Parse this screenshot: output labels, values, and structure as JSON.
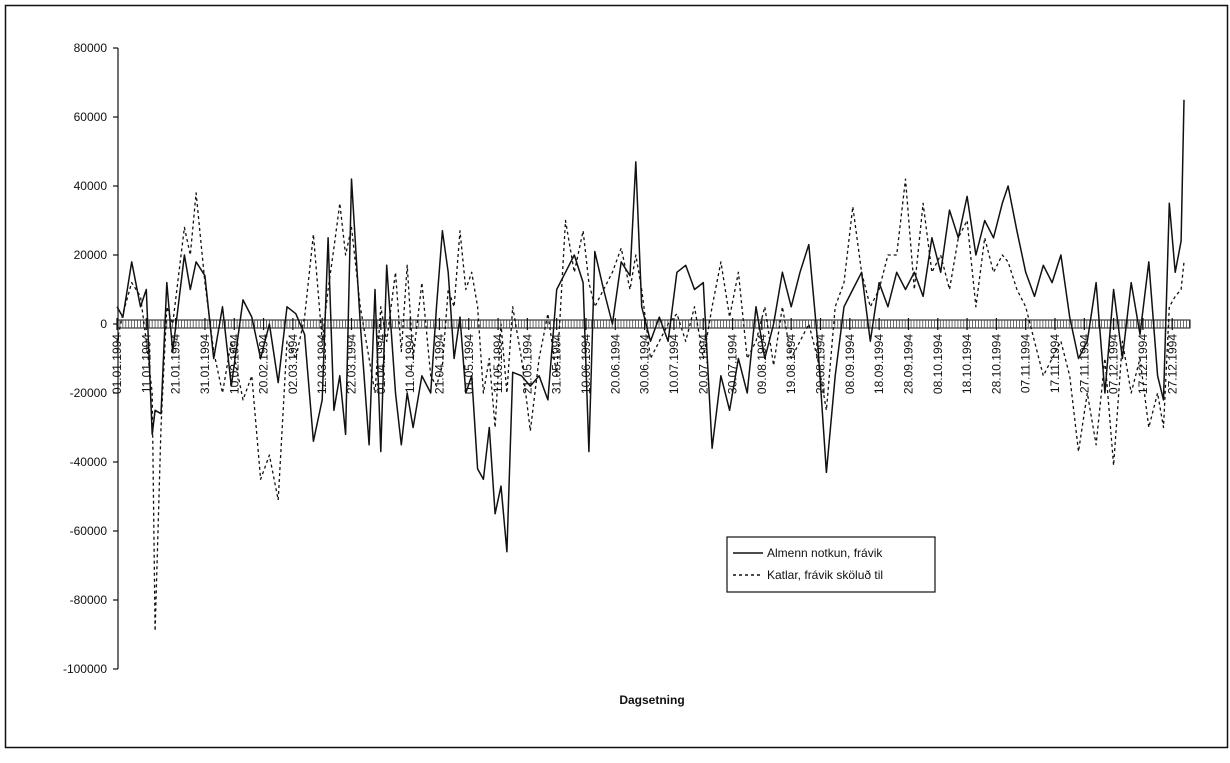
{
  "chart_data": {
    "type": "line",
    "x_label": "Dagsetning",
    "x": [
      "01.01.1994",
      "03.01.1994",
      "06.01.1994",
      "09.01.1994",
      "11.01.1994",
      "13.01.1994",
      "14.01.1994",
      "16.01.1994",
      "18.01.1994",
      "20.01.1994",
      "24.01.1994",
      "26.01.1994",
      "28.01.1994",
      "31.01.1994",
      "03.02.1994",
      "06.02.1994",
      "09.02.1994",
      "13.02.1994",
      "16.02.1994",
      "19.02.1994",
      "22.02.1994",
      "25.02.1994",
      "28.02.1994",
      "03.03.1994",
      "06.03.1994",
      "09.03.1994",
      "12.03.1994",
      "14.03.1994",
      "16.03.1994",
      "18.03.1994",
      "20.03.1994",
      "22.03.1994",
      "25.03.1994",
      "28.03.1994",
      "30.03.1994",
      "01.04.1994",
      "03.04.1994",
      "06.04.1994",
      "08.04.1994",
      "10.04.1994",
      "12.04.1994",
      "15.04.1994",
      "18.04.1994",
      "20.04.1994",
      "22.04.1994",
      "24.04.1994",
      "26.04.1994",
      "28.04.1994",
      "30.04.1994",
      "02.05.1994",
      "04.05.1994",
      "06.05.1994",
      "08.05.1994",
      "10.05.1994",
      "12.05.1994",
      "14.05.1994",
      "16.05.1994",
      "19.05.1994",
      "22.05.1994",
      "25.05.1994",
      "28.05.1994",
      "31.05.1994",
      "03.06.1994",
      "06.06.1994",
      "09.06.1994",
      "11.06.1994",
      "13.06.1994",
      "16.06.1994",
      "19.06.1994",
      "22.06.1994",
      "25.06.1994",
      "27.06.1994",
      "29.06.1994",
      "02.07.1994",
      "05.07.1994",
      "08.07.1994",
      "11.07.1994",
      "14.07.1994",
      "17.07.1994",
      "20.07.1994",
      "23.07.1994",
      "26.07.1994",
      "29.07.1994",
      "01.08.1994",
      "04.08.1994",
      "07.08.1994",
      "10.08.1994",
      "13.08.1994",
      "16.08.1994",
      "19.08.1994",
      "22.08.1994",
      "25.08.1994",
      "28.08.1994",
      "31.08.1994",
      "03.09.1994",
      "06.09.1994",
      "09.09.1994",
      "12.09.1994",
      "15.09.1994",
      "18.09.1994",
      "21.09.1994",
      "24.09.1994",
      "27.09.1994",
      "30.09.1994",
      "03.10.1994",
      "06.10.1994",
      "09.10.1994",
      "12.10.1994",
      "15.10.1994",
      "18.10.1994",
      "21.10.1994",
      "24.10.1994",
      "27.10.1994",
      "30.10.1994",
      "01.11.1994",
      "04.11.1994",
      "07.11.1994",
      "10.11.1994",
      "13.11.1994",
      "16.11.1994",
      "19.11.1994",
      "22.11.1994",
      "25.11.1994",
      "28.11.1994",
      "01.12.1994",
      "04.12.1994",
      "07.12.1994",
      "10.12.1994",
      "13.12.1994",
      "16.12.1994",
      "19.12.1994",
      "22.12.1994",
      "24.12.1994",
      "26.12.1994",
      "28.12.1994",
      "30.12.1994",
      "31.12.1994"
    ],
    "series": [
      {
        "name": "Almenn notkun, frávik",
        "color": "#111111",
        "style": "solid",
        "values": [
          5000,
          2000,
          18000,
          5000,
          10000,
          -32000,
          -25000,
          -26000,
          12000,
          -8000,
          20000,
          10000,
          18000,
          14000,
          -10000,
          5000,
          -18000,
          7000,
          2000,
          -10000,
          0,
          -17000,
          5000,
          3000,
          -3000,
          -34000,
          -22000,
          25000,
          -25000,
          -15000,
          -32000,
          42000,
          0,
          -35000,
          10000,
          -37000,
          17000,
          -20000,
          -35000,
          -20000,
          -30000,
          -15000,
          -20000,
          5000,
          27000,
          15000,
          -10000,
          2000,
          -20000,
          -15000,
          -42000,
          -45000,
          -30000,
          -55000,
          -47000,
          -66000,
          -14000,
          -15000,
          -18000,
          -15000,
          -22000,
          10000,
          15000,
          20000,
          12000,
          -37000,
          21000,
          10000,
          0,
          18000,
          14000,
          47000,
          5000,
          -5000,
          2000,
          -5000,
          15000,
          17000,
          10000,
          12000,
          -36000,
          -15000,
          -25000,
          -10000,
          -20000,
          5000,
          -10000,
          0,
          15000,
          5000,
          15000,
          23000,
          -5000,
          -43000,
          -15000,
          5000,
          10000,
          15000,
          -5000,
          12000,
          5000,
          15000,
          10000,
          15000,
          8000,
          25000,
          15000,
          33000,
          25000,
          37000,
          20000,
          30000,
          25000,
          35000,
          40000,
          27000,
          15000,
          8000,
          17000,
          12000,
          20000,
          2000,
          -10000,
          -5000,
          12000,
          -20000,
          10000,
          -10000,
          12000,
          -3000,
          18000,
          -15000,
          -22000,
          35000,
          15000,
          24000,
          65000
        ]
      },
      {
        "name": "Katlar, frávik sköluð til",
        "color": "#111111",
        "style": "dashed",
        "values": [
          -5000,
          3000,
          12000,
          8000,
          -5000,
          -20000,
          -89000,
          -30000,
          5000,
          0,
          28000,
          20000,
          38000,
          12000,
          -8000,
          -20000,
          -5000,
          -22000,
          -15000,
          -45000,
          -38000,
          -51000,
          -5000,
          -10000,
          2000,
          26000,
          -5000,
          10000,
          22000,
          35000,
          20000,
          28000,
          5000,
          -10000,
          -20000,
          5000,
          -5000,
          15000,
          -8000,
          17000,
          -10000,
          12000,
          -15000,
          -18000,
          -12000,
          10000,
          5000,
          27000,
          10000,
          15000,
          5000,
          -20000,
          -10000,
          -30000,
          0,
          -20000,
          5000,
          -10000,
          -31000,
          -10000,
          3000,
          -15000,
          30000,
          15000,
          27000,
          12000,
          5000,
          10000,
          15000,
          22000,
          10000,
          20000,
          10000,
          -10000,
          -5000,
          0,
          3000,
          -5000,
          5000,
          -10000,
          5000,
          18000,
          2000,
          15000,
          -10000,
          -5000,
          5000,
          -12000,
          5000,
          -10000,
          -5000,
          0,
          -10000,
          -25000,
          5000,
          12000,
          34000,
          15000,
          5000,
          10000,
          20000,
          20000,
          42000,
          10000,
          35000,
          15000,
          20000,
          10000,
          25000,
          30000,
          5000,
          25000,
          15000,
          20000,
          18000,
          10000,
          5000,
          -5000,
          -15000,
          -10000,
          -5000,
          -15000,
          -37000,
          -20000,
          -35000,
          -10000,
          -41000,
          -5000,
          -20000,
          -10000,
          -30000,
          -20000,
          -30000,
          5000,
          8000,
          10000,
          18000
        ]
      }
    ],
    "xlim": [
      "01.01.1994",
      "31.12.1994"
    ],
    "xticks": [
      "01.01.1994",
      "11.01.1994",
      "21.01.1994",
      "31.01.1994",
      "10.02.1994",
      "20.02.1994",
      "02.03.1994",
      "12.03.1994",
      "22.03.1994",
      "01.04.1994",
      "11.04.1994",
      "21.04.1994",
      "01.05.1994",
      "11.05.1994",
      "21.05.1994",
      "31.05.1994",
      "10.06.1994",
      "20.06.1994",
      "30.06.1994",
      "10.07.1994",
      "20.07.1994",
      "30.07.1994",
      "09.08.1994",
      "19.08.1994",
      "29.08.1994",
      "08.09.1994",
      "18.09.1994",
      "28.09.1994",
      "08.10.1994",
      "18.10.1994",
      "28.10.1994",
      "07.11.1994",
      "17.11.1994",
      "27.11.1994",
      "07.12.1994",
      "17.12.1994",
      "27.12.1994"
    ],
    "ylim": [
      -100000,
      80000
    ],
    "yticks": [
      80000,
      60000,
      40000,
      20000,
      0,
      -20000,
      -40000,
      -60000,
      -80000,
      -100000
    ],
    "legend": "lower right"
  }
}
